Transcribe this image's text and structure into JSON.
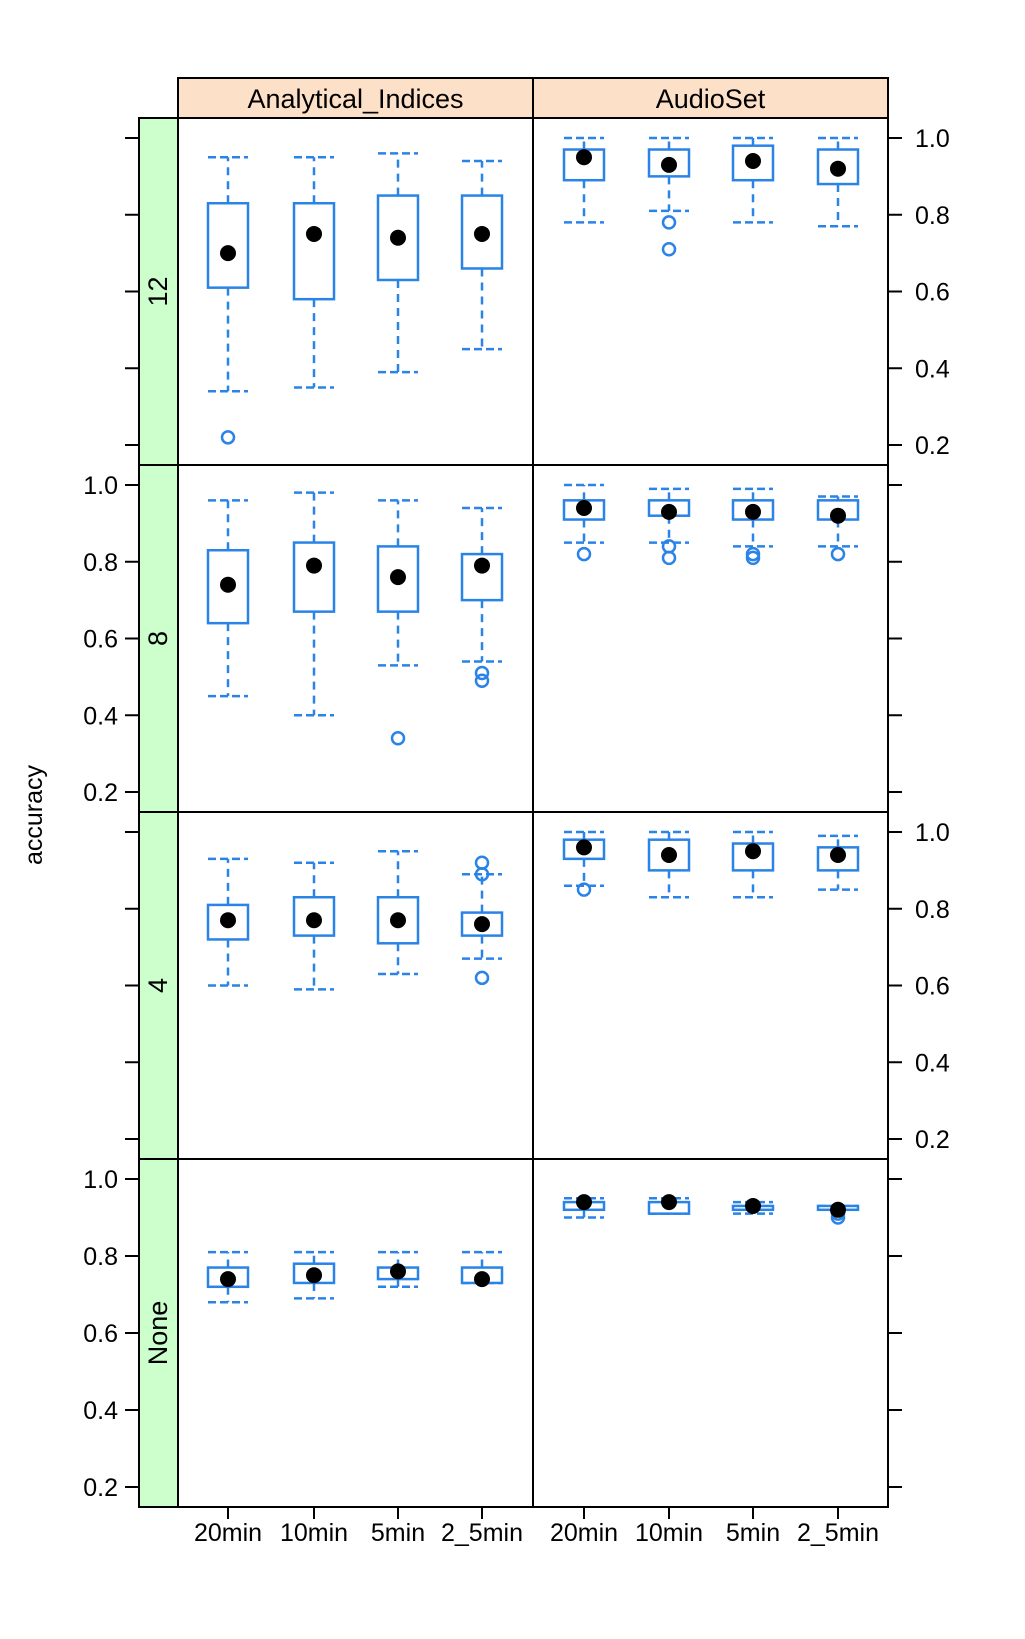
{
  "chart_data": {
    "type": "boxplot",
    "ylabel": "accuracy",
    "ylim": [
      0.2,
      1.0
    ],
    "yticks": [
      "0.2",
      "0.4",
      "0.6",
      "0.8",
      "1.0"
    ],
    "categories": [
      "20min",
      "10min",
      "5min",
      "2_5min"
    ],
    "columns": [
      "Analytical_Indices",
      "AudioSet"
    ],
    "rows": [
      "12",
      "8",
      "4",
      "None"
    ],
    "colors": {
      "box": "#2a83e6",
      "median": "#000000",
      "column_strip": "#fde0c8",
      "row_strip": "#ccffcc"
    },
    "panels": [
      {
        "row": "12",
        "column": "Analytical_Indices",
        "boxes": [
          {
            "category": "20min",
            "whisker_low": 0.34,
            "q1": 0.61,
            "median": 0.7,
            "q3": 0.83,
            "whisker_high": 0.95,
            "outliers": [
              0.22
            ]
          },
          {
            "category": "10min",
            "whisker_low": 0.35,
            "q1": 0.58,
            "median": 0.75,
            "q3": 0.83,
            "whisker_high": 0.95,
            "outliers": []
          },
          {
            "category": "5min",
            "whisker_low": 0.39,
            "q1": 0.63,
            "median": 0.74,
            "q3": 0.85,
            "whisker_high": 0.96,
            "outliers": []
          },
          {
            "category": "2_5min",
            "whisker_low": 0.45,
            "q1": 0.66,
            "median": 0.75,
            "q3": 0.85,
            "whisker_high": 0.94,
            "outliers": []
          }
        ]
      },
      {
        "row": "12",
        "column": "AudioSet",
        "boxes": [
          {
            "category": "20min",
            "whisker_low": 0.78,
            "q1": 0.89,
            "median": 0.95,
            "q3": 0.97,
            "whisker_high": 1.0,
            "outliers": []
          },
          {
            "category": "10min",
            "whisker_low": 0.81,
            "q1": 0.9,
            "median": 0.93,
            "q3": 0.97,
            "whisker_high": 1.0,
            "outliers": [
              0.78,
              0.71
            ]
          },
          {
            "category": "5min",
            "whisker_low": 0.78,
            "q1": 0.89,
            "median": 0.94,
            "q3": 0.98,
            "whisker_high": 1.0,
            "outliers": []
          },
          {
            "category": "2_5min",
            "whisker_low": 0.77,
            "q1": 0.88,
            "median": 0.92,
            "q3": 0.97,
            "whisker_high": 1.0,
            "outliers": []
          }
        ]
      },
      {
        "row": "8",
        "column": "Analytical_Indices",
        "boxes": [
          {
            "category": "20min",
            "whisker_low": 0.45,
            "q1": 0.64,
            "median": 0.74,
            "q3": 0.83,
            "whisker_high": 0.96,
            "outliers": []
          },
          {
            "category": "10min",
            "whisker_low": 0.4,
            "q1": 0.67,
            "median": 0.79,
            "q3": 0.85,
            "whisker_high": 0.98,
            "outliers": []
          },
          {
            "category": "5min",
            "whisker_low": 0.53,
            "q1": 0.67,
            "median": 0.76,
            "q3": 0.84,
            "whisker_high": 0.96,
            "outliers": [
              0.34
            ]
          },
          {
            "category": "2_5min",
            "whisker_low": 0.54,
            "q1": 0.7,
            "median": 0.79,
            "q3": 0.82,
            "whisker_high": 0.94,
            "outliers": [
              0.51,
              0.49
            ]
          }
        ]
      },
      {
        "row": "8",
        "column": "AudioSet",
        "boxes": [
          {
            "category": "20min",
            "whisker_low": 0.85,
            "q1": 0.91,
            "median": 0.94,
            "q3": 0.96,
            "whisker_high": 1.0,
            "outliers": [
              0.82
            ]
          },
          {
            "category": "10min",
            "whisker_low": 0.85,
            "q1": 0.92,
            "median": 0.93,
            "q3": 0.96,
            "whisker_high": 0.99,
            "outliers": [
              0.84,
              0.81
            ]
          },
          {
            "category": "5min",
            "whisker_low": 0.84,
            "q1": 0.91,
            "median": 0.93,
            "q3": 0.96,
            "whisker_high": 0.99,
            "outliers": [
              0.82,
              0.81
            ]
          },
          {
            "category": "2_5min",
            "whisker_low": 0.84,
            "q1": 0.91,
            "median": 0.92,
            "q3": 0.96,
            "whisker_high": 0.97,
            "outliers": [
              0.82
            ]
          }
        ]
      },
      {
        "row": "4",
        "column": "Analytical_Indices",
        "boxes": [
          {
            "category": "20min",
            "whisker_low": 0.6,
            "q1": 0.72,
            "median": 0.77,
            "q3": 0.81,
            "whisker_high": 0.93,
            "outliers": []
          },
          {
            "category": "10min",
            "whisker_low": 0.59,
            "q1": 0.73,
            "median": 0.77,
            "q3": 0.83,
            "whisker_high": 0.92,
            "outliers": []
          },
          {
            "category": "5min",
            "whisker_low": 0.63,
            "q1": 0.71,
            "median": 0.77,
            "q3": 0.83,
            "whisker_high": 0.95,
            "outliers": []
          },
          {
            "category": "2_5min",
            "whisker_low": 0.67,
            "q1": 0.73,
            "median": 0.76,
            "q3": 0.79,
            "whisker_high": 0.89,
            "outliers": [
              0.92,
              0.89,
              0.62
            ]
          }
        ]
      },
      {
        "row": "4",
        "column": "AudioSet",
        "boxes": [
          {
            "category": "20min",
            "whisker_low": 0.86,
            "q1": 0.93,
            "median": 0.96,
            "q3": 0.98,
            "whisker_high": 1.0,
            "outliers": [
              0.85
            ]
          },
          {
            "category": "10min",
            "whisker_low": 0.83,
            "q1": 0.9,
            "median": 0.94,
            "q3": 0.98,
            "whisker_high": 1.0,
            "outliers": []
          },
          {
            "category": "5min",
            "whisker_low": 0.83,
            "q1": 0.9,
            "median": 0.95,
            "q3": 0.97,
            "whisker_high": 1.0,
            "outliers": []
          },
          {
            "category": "2_5min",
            "whisker_low": 0.85,
            "q1": 0.9,
            "median": 0.94,
            "q3": 0.96,
            "whisker_high": 0.99,
            "outliers": []
          }
        ]
      },
      {
        "row": "None",
        "column": "Analytical_Indices",
        "boxes": [
          {
            "category": "20min",
            "whisker_low": 0.68,
            "q1": 0.72,
            "median": 0.74,
            "q3": 0.77,
            "whisker_high": 0.81,
            "outliers": []
          },
          {
            "category": "10min",
            "whisker_low": 0.69,
            "q1": 0.73,
            "median": 0.75,
            "q3": 0.78,
            "whisker_high": 0.81,
            "outliers": []
          },
          {
            "category": "5min",
            "whisker_low": 0.72,
            "q1": 0.74,
            "median": 0.76,
            "q3": 0.77,
            "whisker_high": 0.81,
            "outliers": []
          },
          {
            "category": "2_5min",
            "whisker_low": 0.73,
            "q1": 0.73,
            "median": 0.74,
            "q3": 0.77,
            "whisker_high": 0.81,
            "outliers": []
          }
        ]
      },
      {
        "row": "None",
        "column": "AudioSet",
        "boxes": [
          {
            "category": "20min",
            "whisker_low": 0.9,
            "q1": 0.92,
            "median": 0.94,
            "q3": 0.94,
            "whisker_high": 0.95,
            "outliers": []
          },
          {
            "category": "10min",
            "whisker_low": 0.91,
            "q1": 0.91,
            "median": 0.94,
            "q3": 0.94,
            "whisker_high": 0.95,
            "outliers": []
          },
          {
            "category": "5min",
            "whisker_low": 0.91,
            "q1": 0.92,
            "median": 0.93,
            "q3": 0.93,
            "whisker_high": 0.94,
            "outliers": []
          },
          {
            "category": "2_5min",
            "whisker_low": 0.92,
            "q1": 0.92,
            "median": 0.92,
            "q3": 0.93,
            "whisker_high": 0.93,
            "outliers": [
              0.91,
              0.9
            ]
          }
        ]
      }
    ]
  }
}
